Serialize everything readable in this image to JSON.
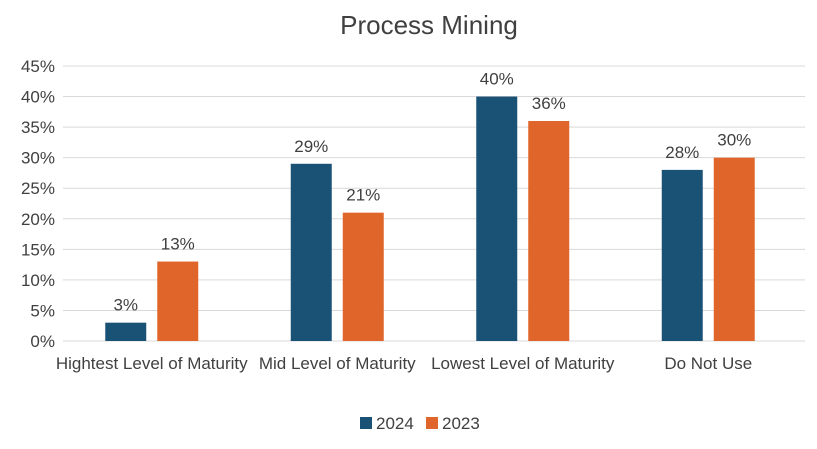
{
  "chart_data": {
    "type": "bar",
    "title": "Process Mining",
    "categories": [
      "Hightest Level of Maturity",
      "Mid Level of Maturity",
      "Lowest Level of Maturity",
      "Do Not Use"
    ],
    "series": [
      {
        "name": "2024",
        "values": [
          3,
          29,
          40,
          28
        ],
        "color": "#1a5276",
        "labels": [
          "3%",
          "29%",
          "40%",
          "28%"
        ]
      },
      {
        "name": "2023",
        "values": [
          13,
          21,
          36,
          30
        ],
        "color": "#e0652a",
        "labels": [
          "13%",
          "21%",
          "36%",
          "30%"
        ]
      }
    ],
    "ylim": [
      0,
      45
    ],
    "yticks": [
      0,
      5,
      10,
      15,
      20,
      25,
      30,
      35,
      40,
      45
    ],
    "ytick_labels": [
      "0%",
      "5%",
      "10%",
      "15%",
      "20%",
      "25%",
      "30%",
      "35%",
      "40%",
      "45%"
    ],
    "xlabel": "",
    "ylabel": "",
    "grid": true,
    "legend_position": "bottom"
  }
}
